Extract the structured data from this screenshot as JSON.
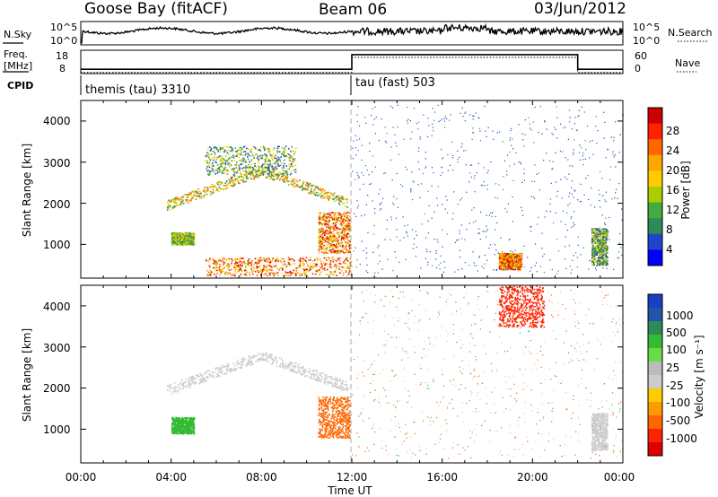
{
  "header": {
    "station": "Goose Bay (fitACF)",
    "beam": "Beam 06",
    "date": "03/Jun/2012"
  },
  "noise_panel": {
    "left_label": "N.Sky",
    "right_label": "N.Search",
    "left_ticks": [
      "10^5",
      "10^0"
    ],
    "right_ticks": [
      "10^5",
      "10^0"
    ]
  },
  "freq_panel": {
    "left_label_line1": "Freq.",
    "left_label_line2": "[MHz]",
    "right_label": "Nave",
    "left_ticks": [
      "18",
      "8"
    ],
    "right_ticks": [
      "60",
      "0"
    ]
  },
  "cpid_panel": {
    "label": "CPID",
    "modes": [
      "themis (tau) 3310",
      "tau (fast) 503"
    ]
  },
  "power_panel": {
    "ylabel": "Slant Range [km]",
    "yticks": [
      "4000",
      "3000",
      "2000",
      "1000"
    ],
    "colorbar_label": "Power [dB]",
    "colorbar_ticks": [
      "28",
      "24",
      "20",
      "16",
      "12",
      "8",
      "4"
    ],
    "colors": [
      "#0000ff",
      "#2244cc",
      "#2e8b57",
      "#44aa44",
      "#aacc00",
      "#ffcc00",
      "#ffa500",
      "#ff6600",
      "#ff2200",
      "#cc0000"
    ]
  },
  "velocity_panel": {
    "ylabel": "Slant Range [km]",
    "yticks": [
      "4000",
      "3000",
      "2000",
      "1000"
    ],
    "colorbar_label": "Velocity [m s⁻¹]",
    "colorbar_ticks": [
      "1000",
      "500",
      "100",
      "25",
      "-25",
      "-100",
      "-500",
      "-1000"
    ],
    "colors": [
      "#1a3fbf",
      "#2255aa",
      "#2e8b57",
      "#33bb33",
      "#66dd44",
      "#bbbbbb",
      "#cccccc",
      "#ffcc00",
      "#ff9900",
      "#ff6600",
      "#ff2200",
      "#dd0000"
    ]
  },
  "xaxis": {
    "label": "Time UT",
    "ticks": [
      "00:00",
      "04:00",
      "08:00",
      "12:00",
      "16:00",
      "20:00",
      "00:00"
    ]
  },
  "chart_data": {
    "type": "heatmap",
    "title": "Goose Bay (fitACF)  Beam 06  03/Jun/2012",
    "xlabel": "Time UT",
    "ylabel": "Slant Range [km]",
    "xlim": [
      0,
      24
    ],
    "ylim": [
      180,
      4500
    ],
    "mode_change_time": 12,
    "power_scatter_regions": [
      {
        "name": "arc",
        "t_start": 3.8,
        "t_end": 11.8,
        "range_km": [
          1900,
          2800
        ],
        "power_dB": [
          8,
          22
        ]
      },
      {
        "name": "arc_echo_top",
        "t_start": 5.5,
        "t_end": 9.5,
        "range_km": [
          2700,
          3400
        ],
        "power_dB": [
          4,
          16
        ]
      },
      {
        "name": "patch_1100",
        "t_start": 4.0,
        "t_end": 5.0,
        "range_km": [
          1000,
          1300
        ],
        "power_dB": [
          8,
          16
        ]
      },
      {
        "name": "near_range",
        "t_start": 5.5,
        "t_end": 12.0,
        "range_km": [
          250,
          700
        ],
        "power_dB": [
          12,
          28
        ]
      },
      {
        "name": "cluster_1500",
        "t_start": 10.5,
        "t_end": 11.9,
        "range_km": [
          800,
          1800
        ],
        "power_dB": [
          12,
          28
        ]
      },
      {
        "name": "patch_19h",
        "t_start": 18.5,
        "t_end": 19.5,
        "range_km": [
          400,
          800
        ],
        "power_dB": [
          12,
          28
        ]
      },
      {
        "name": "patch_23h",
        "t_start": 22.6,
        "t_end": 23.3,
        "range_km": [
          500,
          1400
        ],
        "power_dB": [
          4,
          16
        ]
      }
    ],
    "velocity_scatter_regions": [
      {
        "name": "arc",
        "t_start": 3.8,
        "t_end": 11.8,
        "range_km": [
          1900,
          2800
        ],
        "velocity_ms": [
          -25,
          25
        ]
      },
      {
        "name": "patch_1100",
        "t_start": 4.0,
        "t_end": 5.0,
        "range_km": [
          900,
          1300
        ],
        "velocity_ms": [
          100,
          500
        ]
      },
      {
        "name": "cluster_1500",
        "t_start": 10.5,
        "t_end": 11.9,
        "range_km": [
          800,
          1800
        ],
        "velocity_ms": [
          -500,
          -100
        ]
      },
      {
        "name": "far_range_20h",
        "t_start": 18.5,
        "t_end": 20.5,
        "range_km": [
          3500,
          4500
        ],
        "velocity_ms": [
          -1000,
          -500
        ]
      },
      {
        "name": "patch_23h",
        "t_start": 22.6,
        "t_end": 23.3,
        "range_km": [
          500,
          1400
        ],
        "velocity_ms": [
          -25,
          25
        ]
      }
    ],
    "frequency_MHz": {
      "before_12UT": 10,
      "after_12UT": 16.8,
      "after_22UT": 10
    },
    "nave": {
      "before_12UT": 8,
      "after_12UT": 50,
      "after_22UT": 8
    }
  }
}
